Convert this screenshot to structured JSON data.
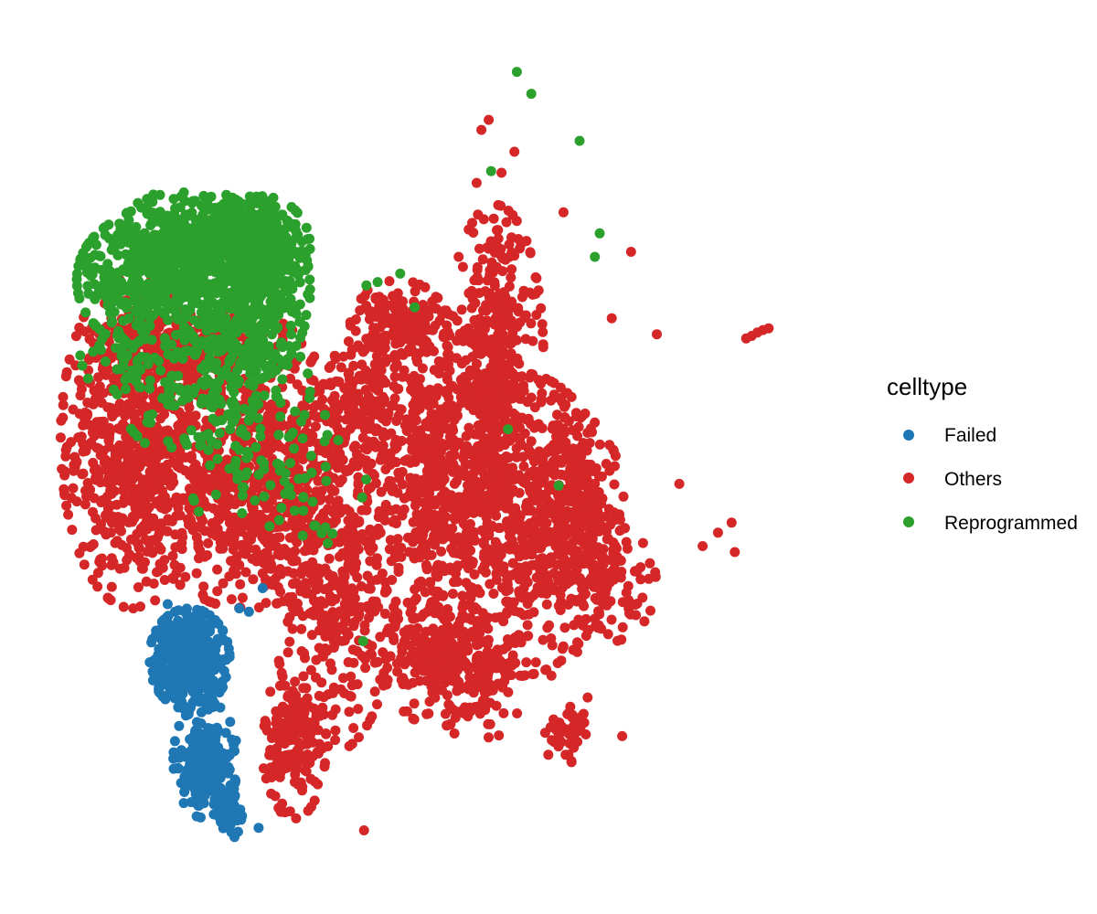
{
  "chart_data": {
    "type": "scatter",
    "title": "",
    "xlabel": "",
    "ylabel": "",
    "xlim": [
      0,
      100
    ],
    "ylim": [
      0,
      100
    ],
    "grid": false,
    "axes_visible": false,
    "legend": {
      "title": "celltype",
      "placement": "right",
      "entries": [
        {
          "name": "Failed",
          "color": "#1F77B4"
        },
        {
          "name": "Others",
          "color": "#D62728"
        },
        {
          "name": "Reprogrammed",
          "color": "#2CA02C"
        }
      ]
    },
    "series": [
      {
        "name": "Others",
        "color": "#D62728",
        "regions": [
          {
            "cx": 12,
            "cy": 52,
            "rx": 9,
            "ry": 20,
            "n": 650
          },
          {
            "cx": 26,
            "cy": 47,
            "rx": 14,
            "ry": 15,
            "n": 700
          },
          {
            "cx": 37,
            "cy": 37,
            "rx": 8,
            "ry": 22,
            "n": 450
          },
          {
            "cx": 32,
            "cy": 16,
            "rx": 4,
            "ry": 9,
            "n": 180
          },
          {
            "cx": 49,
            "cy": 48,
            "rx": 8,
            "ry": 20,
            "n": 450
          },
          {
            "cx": 57,
            "cy": 62,
            "rx": 6,
            "ry": 18,
            "n": 380
          },
          {
            "cx": 60,
            "cy": 42,
            "rx": 12,
            "ry": 18,
            "n": 650
          },
          {
            "cx": 50,
            "cy": 26,
            "rx": 7,
            "ry": 8,
            "n": 220
          },
          {
            "cx": 67,
            "cy": 44,
            "rx": 6,
            "ry": 11,
            "n": 220
          },
          {
            "cx": 71,
            "cy": 35,
            "rx": 6,
            "ry": 7,
            "n": 110
          },
          {
            "cx": 55,
            "cy": 24,
            "rx": 6,
            "ry": 8,
            "n": 110
          },
          {
            "cx": 66,
            "cy": 17,
            "rx": 3,
            "ry": 4,
            "n": 40
          },
          {
            "cx": 40,
            "cy": 57,
            "rx": 7,
            "ry": 8,
            "n": 180
          },
          {
            "cx": 20,
            "cy": 63,
            "rx": 13,
            "ry": 5,
            "n": 300
          },
          {
            "cx": 45,
            "cy": 66,
            "rx": 6,
            "ry": 5,
            "n": 140
          }
        ],
        "points": [
          {
            "x": 55.3,
            "y": 88.9
          },
          {
            "x": 56.2,
            "y": 90.1
          },
          {
            "x": 59.4,
            "y": 86.3
          },
          {
            "x": 57.8,
            "y": 83.8
          },
          {
            "x": 54.7,
            "y": 82.6
          },
          {
            "x": 65.5,
            "y": 79.1
          },
          {
            "x": 73.9,
            "y": 74.4
          },
          {
            "x": 77.1,
            "y": 64.6
          },
          {
            "x": 71.5,
            "y": 66.5
          },
          {
            "x": 88.2,
            "y": 64.1
          },
          {
            "x": 88.9,
            "y": 64.4
          },
          {
            "x": 89.6,
            "y": 64.8
          },
          {
            "x": 90.3,
            "y": 65.1
          },
          {
            "x": 91.0,
            "y": 65.3
          },
          {
            "x": 86.4,
            "y": 42.2
          },
          {
            "x": 84.7,
            "y": 41.0
          },
          {
            "x": 86.8,
            "y": 38.7
          },
          {
            "x": 82.8,
            "y": 39.4
          },
          {
            "x": 79.9,
            "y": 46.8
          },
          {
            "x": 72.8,
            "y": 16.8
          },
          {
            "x": 40.7,
            "y": 5.6
          },
          {
            "x": 74.5,
            "y": 31.2
          },
          {
            "x": 69.8,
            "y": 29.7
          },
          {
            "x": 67.2,
            "y": 26.8
          },
          {
            "x": 64.0,
            "y": 24.0
          },
          {
            "x": 68.5,
            "y": 21.4
          }
        ]
      },
      {
        "name": "Reprogrammed",
        "color": "#2CA02C",
        "regions": [
          {
            "cx": 14,
            "cy": 71,
            "rx": 9,
            "ry": 8,
            "n": 380
          },
          {
            "cx": 26,
            "cy": 70,
            "rx": 8,
            "ry": 11,
            "n": 520
          },
          {
            "cx": 19,
            "cy": 76,
            "rx": 9,
            "ry": 6,
            "n": 300
          },
          {
            "cx": 28,
            "cy": 75,
            "rx": 6,
            "ry": 6,
            "n": 250
          },
          {
            "cx": 22,
            "cy": 58,
            "rx": 12,
            "ry": 9,
            "n": 180
          },
          {
            "cx": 30,
            "cy": 48,
            "rx": 11,
            "ry": 10,
            "n": 70
          },
          {
            "cx": 10,
            "cy": 62,
            "rx": 6,
            "ry": 4,
            "n": 40
          }
        ],
        "points": [
          {
            "x": 59.7,
            "y": 95.8
          },
          {
            "x": 61.5,
            "y": 93.2
          },
          {
            "x": 67.5,
            "y": 87.6
          },
          {
            "x": 70.0,
            "y": 76.6
          },
          {
            "x": 69.4,
            "y": 73.8
          },
          {
            "x": 58.6,
            "y": 53.3
          },
          {
            "x": 56.5,
            "y": 84.0
          },
          {
            "x": 41.0,
            "y": 70.4
          },
          {
            "x": 42.4,
            "y": 70.8
          },
          {
            "x": 45.2,
            "y": 71.8
          },
          {
            "x": 47.0,
            "y": 67.8
          },
          {
            "x": 64.9,
            "y": 46.6
          },
          {
            "x": 40.6,
            "y": 28.1
          }
        ]
      },
      {
        "name": "Failed",
        "color": "#1F77B4",
        "regions": [
          {
            "cx": 19,
            "cy": 26,
            "rx": 5,
            "ry": 6,
            "n": 420
          },
          {
            "cx": 21,
            "cy": 14,
            "rx": 4,
            "ry": 7,
            "n": 220
          },
          {
            "cx": 24,
            "cy": 8,
            "rx": 2,
            "ry": 3,
            "n": 40
          }
        ],
        "points": [
          {
            "x": 27.6,
            "y": 5.9
          },
          {
            "x": 28.1,
            "y": 34.4
          },
          {
            "x": 26.4,
            "y": 31.6
          },
          {
            "x": 25.2,
            "y": 32.0
          },
          {
            "x": 16.3,
            "y": 32.5
          },
          {
            "x": 24.6,
            "y": 4.8
          }
        ]
      }
    ]
  }
}
